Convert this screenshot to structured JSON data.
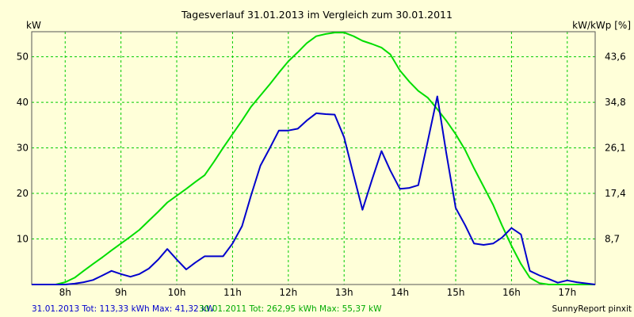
{
  "chart_data": {
    "type": "line",
    "title": "Tagesverlauf 31.01.2013 im Vergleich zum 30.01.2011",
    "y_left_unit": "kW",
    "y_right_unit": "kW/kWp [%]",
    "x_ticks": [
      {
        "value": 8,
        "label": "8h"
      },
      {
        "value": 9,
        "label": "9h"
      },
      {
        "value": 10,
        "label": "10h"
      },
      {
        "value": 11,
        "label": "11h"
      },
      {
        "value": 12,
        "label": "12h"
      },
      {
        "value": 13,
        "label": "13h"
      },
      {
        "value": 14,
        "label": "14h"
      },
      {
        "value": 15,
        "label": "15h"
      },
      {
        "value": 16,
        "label": "16h"
      },
      {
        "value": 17,
        "label": "17h"
      }
    ],
    "y_left_ticks": [
      10,
      20,
      30,
      40,
      50
    ],
    "y_right_ticks": [
      "8,7",
      "17,4",
      "26,1",
      "34,8",
      "43,6"
    ],
    "xlim": [
      7.4,
      17.5
    ],
    "ylim": [
      0,
      55.5
    ],
    "grid": true,
    "series": [
      {
        "color": "#0000cc",
        "x": [
          7.4,
          7.67,
          7.83,
          8.0,
          8.17,
          8.33,
          8.5,
          8.67,
          8.83,
          9.0,
          9.17,
          9.33,
          9.5,
          9.67,
          9.83,
          10.0,
          10.17,
          10.33,
          10.5,
          10.67,
          10.83,
          11.0,
          11.17,
          11.33,
          11.5,
          11.67,
          11.83,
          12.0,
          12.17,
          12.33,
          12.5,
          12.67,
          12.83,
          13.0,
          13.17,
          13.33,
          13.5,
          13.67,
          13.83,
          14.0,
          14.17,
          14.33,
          14.5,
          14.67,
          14.83,
          15.0,
          15.17,
          15.33,
          15.5,
          15.67,
          15.83,
          16.0,
          16.17,
          16.33,
          16.5,
          16.67,
          16.83,
          17.0,
          17.17,
          17.5
        ],
        "y": [
          0,
          0,
          0,
          0,
          0.2,
          0.5,
          1.0,
          2.0,
          3.0,
          2.3,
          1.7,
          2.3,
          3.5,
          5.5,
          7.8,
          5.5,
          3.3,
          4.8,
          6.2,
          6.2,
          6.2,
          9.0,
          12.8,
          19.5,
          26.1,
          30.0,
          33.8,
          33.8,
          34.2,
          36.0,
          37.6,
          37.4,
          37.3,
          32.3,
          24.0,
          16.4,
          23.0,
          29.3,
          25.0,
          21.0,
          21.2,
          21.8,
          31.5,
          41.3,
          29.0,
          16.8,
          13.0,
          9.0,
          8.7,
          9.0,
          10.3,
          12.4,
          11.0,
          3.0,
          2.0,
          1.2,
          0.4,
          0.9,
          0.5,
          0
        ]
      },
      {
        "color": "#00dd00",
        "x": [
          7.4,
          7.67,
          7.83,
          8.0,
          8.17,
          8.33,
          8.5,
          8.67,
          8.83,
          9.0,
          9.17,
          9.33,
          9.5,
          9.67,
          9.83,
          10.0,
          10.17,
          10.33,
          10.5,
          10.67,
          10.83,
          11.0,
          11.17,
          11.33,
          11.5,
          11.67,
          11.83,
          12.0,
          12.17,
          12.33,
          12.5,
          12.67,
          12.83,
          13.0,
          13.17,
          13.33,
          13.5,
          13.67,
          13.83,
          14.0,
          14.17,
          14.33,
          14.5,
          14.67,
          14.83,
          15.0,
          15.17,
          15.33,
          15.5,
          15.67,
          15.83,
          16.0,
          16.17,
          16.33,
          16.5,
          16.67,
          16.83,
          17.0,
          17.17,
          17.5
        ],
        "y": [
          0,
          0,
          0,
          0.5,
          1.5,
          3.0,
          4.5,
          6.0,
          7.5,
          9.0,
          10.5,
          12.0,
          14.0,
          16.0,
          18.0,
          19.5,
          21.0,
          22.5,
          24.0,
          27.0,
          30.0,
          33.0,
          36.0,
          39.0,
          41.5,
          44.0,
          46.5,
          49.0,
          51.0,
          53.0,
          54.5,
          55.0,
          55.3,
          55.3,
          54.5,
          53.5,
          52.8,
          52.0,
          50.5,
          47.0,
          44.5,
          42.5,
          41.0,
          38.5,
          36.0,
          33.0,
          29.5,
          25.5,
          21.5,
          17.5,
          13.0,
          8.5,
          4.5,
          1.5,
          0.3,
          0,
          0,
          0,
          0,
          0
        ]
      }
    ],
    "footer_left_blue": "31.01.2013 Tot: 113,33 kWh Max: 41,32 kW",
    "footer_left_green": "30.01.2011 Tot: 262,95 kWh Max: 55,37 kW",
    "footer_right": "SunnyReport pinxit"
  }
}
